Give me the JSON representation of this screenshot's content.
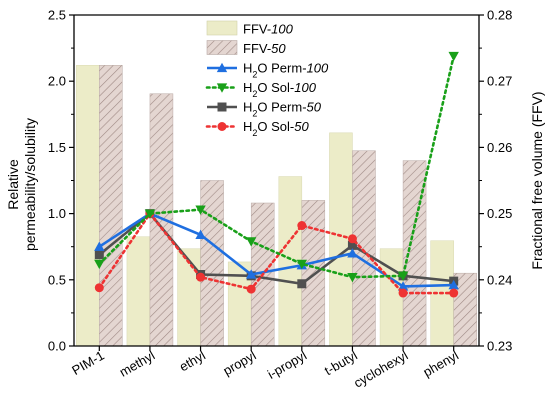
{
  "chart_data": {
    "type": "bar+line",
    "categories": [
      "PIM-1",
      "methyl",
      "ethyl",
      "propyl",
      "i-propyl",
      "t-butyl",
      "cyclohexyl",
      "phenyl"
    ],
    "y_left": {
      "label": "Relative permeability/solubility",
      "label_lines": [
        "Relative",
        "permeability/solubility"
      ],
      "ylim": [
        0.0,
        2.5
      ],
      "ticks": [
        "0.0",
        "0.5",
        "1.0",
        "1.5",
        "2.0",
        "2.5"
      ],
      "tick_values": [
        0.0,
        0.5,
        1.0,
        1.5,
        2.0,
        2.5
      ]
    },
    "y_right": {
      "label": "Fractional free volume (FFV)",
      "ylim": [
        0.23,
        0.28
      ],
      "ticks": [
        "0.23",
        "0.24",
        "0.25",
        "0.26",
        "0.27",
        "0.28"
      ],
      "tick_values": [
        0.23,
        0.24,
        0.25,
        0.26,
        0.27,
        0.28
      ]
    },
    "bar_series": [
      {
        "name_main": "FFV-",
        "name_italic": "100",
        "axis": "right",
        "color": "#ececc8",
        "pattern": "solid",
        "values": [
          0.2724,
          0.2465,
          0.2447,
          0.2427,
          0.2556,
          0.2622,
          0.2447,
          0.2459
        ]
      },
      {
        "name_main": "FFV-",
        "name_italic": "50",
        "axis": "right",
        "color": "#d9c7c0",
        "pattern": "hatch",
        "values": [
          0.2724,
          0.2681,
          0.255,
          0.2516,
          0.252,
          0.2595,
          0.258,
          0.241
        ]
      }
    ],
    "line_series": [
      {
        "name_pre": "H",
        "name_sub": "2",
        "name_main": "O Perm-",
        "name_italic": "100",
        "axis": "left",
        "color": "#1f6fe0",
        "dash": "solid",
        "marker": "triangle-up",
        "values": [
          0.75,
          1.0,
          0.84,
          0.54,
          0.61,
          0.7,
          0.45,
          0.46
        ]
      },
      {
        "name_pre": "H",
        "name_sub": "2",
        "name_main": "O Sol-",
        "name_italic": "100",
        "axis": "left",
        "color": "#19a019",
        "dash": "dotted",
        "marker": "triangle-down",
        "values": [
          0.62,
          1.0,
          1.03,
          0.79,
          0.62,
          0.52,
          0.53,
          2.19
        ]
      },
      {
        "name_pre": "H",
        "name_sub": "2",
        "name_main": "O Perm-",
        "name_italic": "50",
        "axis": "left",
        "color": "#505050",
        "dash": "solid",
        "marker": "square",
        "values": [
          0.69,
          1.0,
          0.54,
          0.53,
          0.47,
          0.76,
          0.53,
          0.49
        ]
      },
      {
        "name_pre": "H",
        "name_sub": "2",
        "name_main": "O Sol-",
        "name_italic": "50",
        "axis": "left",
        "color": "#ee3333",
        "dash": "dotted",
        "marker": "circle",
        "values": [
          0.44,
          1.0,
          0.52,
          0.43,
          0.91,
          0.81,
          0.4,
          0.4
        ]
      }
    ],
    "legend_position": "top-center",
    "grid": false
  }
}
